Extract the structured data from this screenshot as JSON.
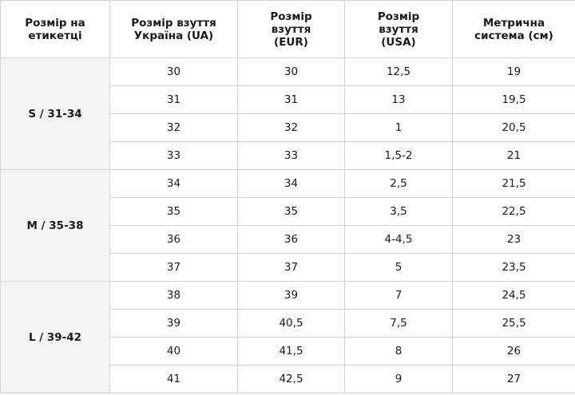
{
  "headers": [
    "Розмір на\nетикетці",
    "Розмір взуття\nУкраїна (UA)",
    "Розмір\nвзуття\n(EUR)",
    "Розмір\nвзуття\n(USA)",
    "Метрична\nсистема (см)"
  ],
  "groups": [
    {
      "label": "S / 31-34",
      "rows": [
        [
          "30",
          "30",
          "12,5",
          "19"
        ],
        [
          "31",
          "31",
          "13",
          "19,5"
        ],
        [
          "32",
          "32",
          "1",
          "20,5"
        ],
        [
          "33",
          "33",
          "1,5-2",
          "21"
        ]
      ]
    },
    {
      "label": "M / 35-38",
      "rows": [
        [
          "34",
          "34",
          "2,5",
          "21,5"
        ],
        [
          "35",
          "35",
          "3,5",
          "22,5"
        ],
        [
          "36",
          "36",
          "4-4,5",
          "23"
        ],
        [
          "37",
          "37",
          "5",
          "23,5"
        ]
      ]
    },
    {
      "label": "L / 39-42",
      "rows": [
        [
          "38",
          "39",
          "7",
          "24,5"
        ],
        [
          "39",
          "40,5",
          "7,5",
          "25,5"
        ],
        [
          "40",
          "41,5",
          "8",
          "26"
        ],
        [
          "41",
          "42,5",
          "9",
          "27"
        ]
      ]
    }
  ]
}
